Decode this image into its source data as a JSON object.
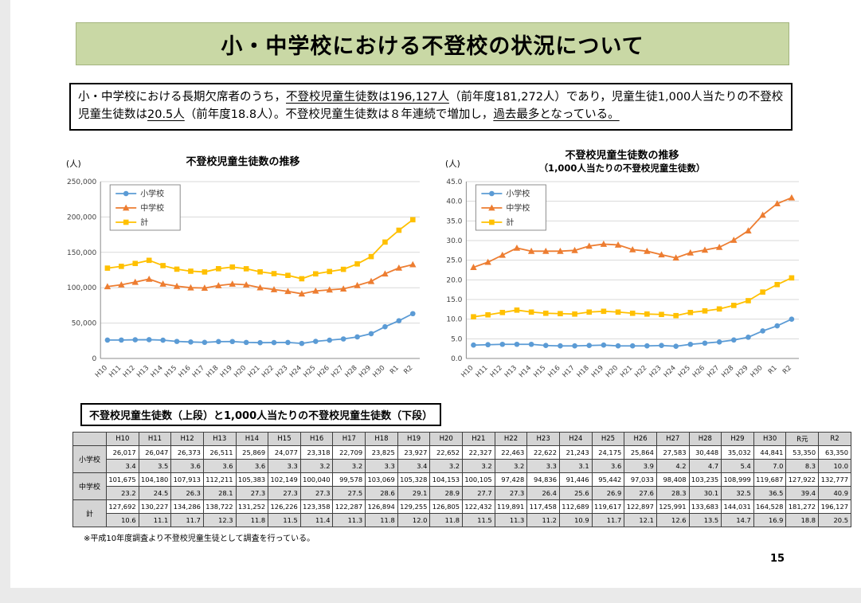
{
  "header": {
    "title": "小・中学校における不登校の状況について"
  },
  "summary": {
    "segments": [
      {
        "text": "小・中学校における長期欠席者のうち，",
        "underline": false
      },
      {
        "text": "不登校児童生徒数は196,127人",
        "underline": true
      },
      {
        "text": "（前年度181,272人）であり，児童生徒1,000人当たりの不登校児童生徒数は",
        "underline": false
      },
      {
        "text": "20.5人",
        "underline": true
      },
      {
        "text": "（前年度18.8人）。不登校児童生徒数は８年連続で増加し，",
        "underline": false
      },
      {
        "text": "過去最多となっている。",
        "underline": true
      }
    ]
  },
  "chart_data": [
    {
      "type": "line",
      "title": "不登校児童生徒数の推移",
      "unit": "(人)",
      "categories": [
        "H10",
        "H11",
        "H12",
        "H13",
        "H14",
        "H15",
        "H16",
        "H17",
        "H18",
        "H19",
        "H20",
        "H21",
        "H22",
        "H23",
        "H24",
        "H25",
        "H26",
        "H27",
        "H28",
        "H29",
        "H30",
        "R1",
        "R2"
      ],
      "series": [
        {
          "name": "小学校",
          "color": "#5b9bd5",
          "marker": "circle",
          "values": [
            26017,
            26047,
            26373,
            26511,
            25869,
            24077,
            23318,
            22709,
            23825,
            23927,
            22652,
            22327,
            22463,
            22622,
            21243,
            24175,
            25864,
            27583,
            30448,
            35032,
            44841,
            53350,
            63350
          ]
        },
        {
          "name": "中学校",
          "color": "#ed7d31",
          "marker": "triangle",
          "values": [
            101675,
            104180,
            107913,
            112211,
            105383,
            102149,
            100040,
            99578,
            103069,
            105328,
            104153,
            100105,
            97428,
            94836,
            91446,
            95442,
            97033,
            98408,
            103235,
            108999,
            119687,
            127922,
            132777
          ]
        },
        {
          "name": "計",
          "color": "#ffc000",
          "marker": "square",
          "values": [
            127692,
            130227,
            134286,
            138722,
            131252,
            126226,
            123358,
            122287,
            126894,
            129255,
            126805,
            122432,
            119891,
            117458,
            112689,
            119617,
            122897,
            125991,
            133683,
            144031,
            164528,
            181272,
            196127
          ]
        }
      ],
      "ylim": [
        0,
        250000
      ],
      "ytick_step": 50000,
      "grid": true,
      "legend_position": "top-left"
    },
    {
      "type": "line",
      "title": "不登校児童生徒数の推移",
      "subtitle": "（1,000人当たりの不登校児童生徒数）",
      "unit": "(人)",
      "categories": [
        "H10",
        "H11",
        "H12",
        "H13",
        "H14",
        "H15",
        "H16",
        "H17",
        "H18",
        "H19",
        "H20",
        "H21",
        "H22",
        "H23",
        "H24",
        "H25",
        "H26",
        "H27",
        "H28",
        "H29",
        "H30",
        "R1",
        "R2"
      ],
      "series": [
        {
          "name": "小学校",
          "color": "#5b9bd5",
          "marker": "circle",
          "values": [
            3.4,
            3.5,
            3.6,
            3.6,
            3.6,
            3.3,
            3.2,
            3.2,
            3.3,
            3.4,
            3.2,
            3.2,
            3.2,
            3.3,
            3.1,
            3.6,
            3.9,
            4.2,
            4.7,
            5.4,
            7.0,
            8.3,
            10.0
          ]
        },
        {
          "name": "中学校",
          "color": "#ed7d31",
          "marker": "triangle",
          "values": [
            23.2,
            24.5,
            26.3,
            28.1,
            27.3,
            27.3,
            27.3,
            27.5,
            28.6,
            29.1,
            28.9,
            27.7,
            27.3,
            26.4,
            25.6,
            26.9,
            27.6,
            28.3,
            30.1,
            32.5,
            36.5,
            39.4,
            40.9
          ]
        },
        {
          "name": "計",
          "color": "#ffc000",
          "marker": "square",
          "values": [
            10.6,
            11.1,
            11.7,
            12.3,
            11.8,
            11.5,
            11.4,
            11.3,
            11.8,
            12.0,
            11.8,
            11.5,
            11.3,
            11.2,
            10.9,
            11.7,
            12.1,
            12.6,
            13.5,
            14.7,
            16.9,
            18.8,
            20.5
          ]
        }
      ],
      "ylim": [
        0,
        45
      ],
      "ytick_step": 5,
      "grid": true,
      "legend_position": "top-left"
    }
  ],
  "table": {
    "title": "不登校児童生徒数（上段）と1,000人当たりの不登校児童生徒数（下段）",
    "columns": [
      "H10",
      "H11",
      "H12",
      "H13",
      "H14",
      "H15",
      "H16",
      "H17",
      "H18",
      "H19",
      "H20",
      "H21",
      "H22",
      "H23",
      "H24",
      "H25",
      "H26",
      "H27",
      "H28",
      "H29",
      "H30",
      "R元",
      "R2"
    ],
    "groups": [
      {
        "label": "小学校",
        "counts": [
          "26,017",
          "26,047",
          "26,373",
          "26,511",
          "25,869",
          "24,077",
          "23,318",
          "22,709",
          "23,825",
          "23,927",
          "22,652",
          "22,327",
          "22,463",
          "22,622",
          "21,243",
          "24,175",
          "25,864",
          "27,583",
          "30,448",
          "35,032",
          "44,841",
          "53,350",
          "63,350"
        ],
        "rates": [
          "3.4",
          "3.5",
          "3.6",
          "3.6",
          "3.6",
          "3.3",
          "3.2",
          "3.2",
          "3.3",
          "3.4",
          "3.2",
          "3.2",
          "3.2",
          "3.3",
          "3.1",
          "3.6",
          "3.9",
          "4.2",
          "4.7",
          "5.4",
          "7.0",
          "8.3",
          "10.0"
        ]
      },
      {
        "label": "中学校",
        "counts": [
          "101,675",
          "104,180",
          "107,913",
          "112,211",
          "105,383",
          "102,149",
          "100,040",
          "99,578",
          "103,069",
          "105,328",
          "104,153",
          "100,105",
          "97,428",
          "94,836",
          "91,446",
          "95,442",
          "97,033",
          "98,408",
          "103,235",
          "108,999",
          "119,687",
          "127,922",
          "132,777"
        ],
        "rates": [
          "23.2",
          "24.5",
          "26.3",
          "28.1",
          "27.3",
          "27.3",
          "27.3",
          "27.5",
          "28.6",
          "29.1",
          "28.9",
          "27.7",
          "27.3",
          "26.4",
          "25.6",
          "26.9",
          "27.6",
          "28.3",
          "30.1",
          "32.5",
          "36.5",
          "39.4",
          "40.9"
        ]
      },
      {
        "label": "計",
        "counts": [
          "127,692",
          "130,227",
          "134,286",
          "138,722",
          "131,252",
          "126,226",
          "123,358",
          "122,287",
          "126,894",
          "129,255",
          "126,805",
          "122,432",
          "119,891",
          "117,458",
          "112,689",
          "119,617",
          "122,897",
          "125,991",
          "133,683",
          "144,031",
          "164,528",
          "181,272",
          "196,127"
        ],
        "rates": [
          "10.6",
          "11.1",
          "11.7",
          "12.3",
          "11.8",
          "11.5",
          "11.4",
          "11.3",
          "11.8",
          "12.0",
          "11.8",
          "11.5",
          "11.3",
          "11.2",
          "10.9",
          "11.7",
          "12.1",
          "12.6",
          "13.5",
          "14.7",
          "16.9",
          "18.8",
          "20.5"
        ]
      }
    ]
  },
  "footnote": "※平成10年度調査より不登校児童生徒として調査を行っている。",
  "page_number": "15"
}
